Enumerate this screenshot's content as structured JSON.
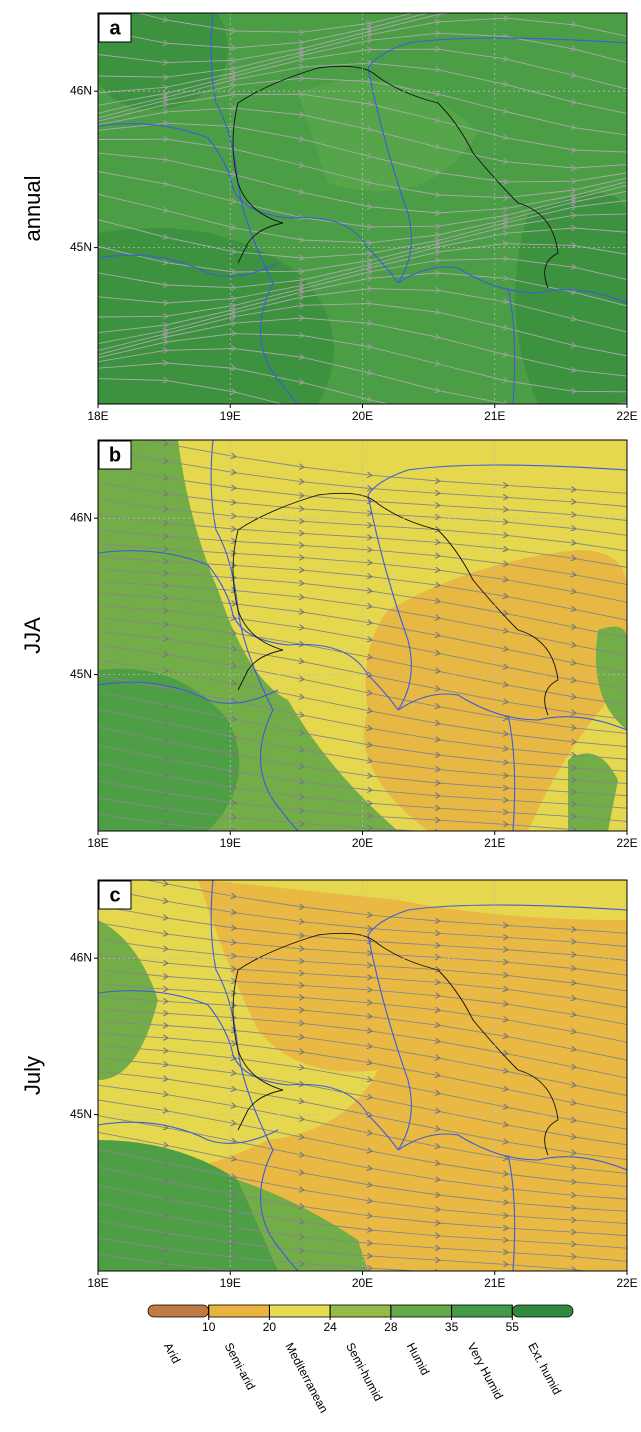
{
  "map": {
    "xlim": [
      18,
      22
    ],
    "ylim": [
      44.0,
      46.5
    ],
    "lon_ticks": [
      {
        "value": 18,
        "label": "18E"
      },
      {
        "value": 19,
        "label": "19E"
      },
      {
        "value": 20,
        "label": "20E"
      },
      {
        "value": 21,
        "label": "21E"
      },
      {
        "value": 22,
        "label": "22E"
      }
    ],
    "lat_ticks": [
      {
        "value": 46,
        "label": "46N"
      },
      {
        "value": 45,
        "label": "45N"
      }
    ],
    "panels": [
      {
        "letter": "a",
        "label": "annual"
      },
      {
        "letter": "b",
        "label": "JJA"
      },
      {
        "letter": "c",
        "label": "July"
      }
    ]
  },
  "colorbar": {
    "ticks": [
      10,
      20,
      24,
      28,
      35,
      55
    ],
    "classes": [
      {
        "name": "Arid",
        "color": "#c07a45"
      },
      {
        "name": "Semi-arid",
        "color": "#eab53e"
      },
      {
        "name": "Mediterranean",
        "color": "#e6dc52"
      },
      {
        "name": "Semi-humid",
        "color": "#94ba48"
      },
      {
        "name": "Humid",
        "color": "#62a94a"
      },
      {
        "name": "Very Humid",
        "color": "#43994a"
      },
      {
        "name": "Ext. humid",
        "color": "#2f8a3e"
      }
    ]
  }
}
